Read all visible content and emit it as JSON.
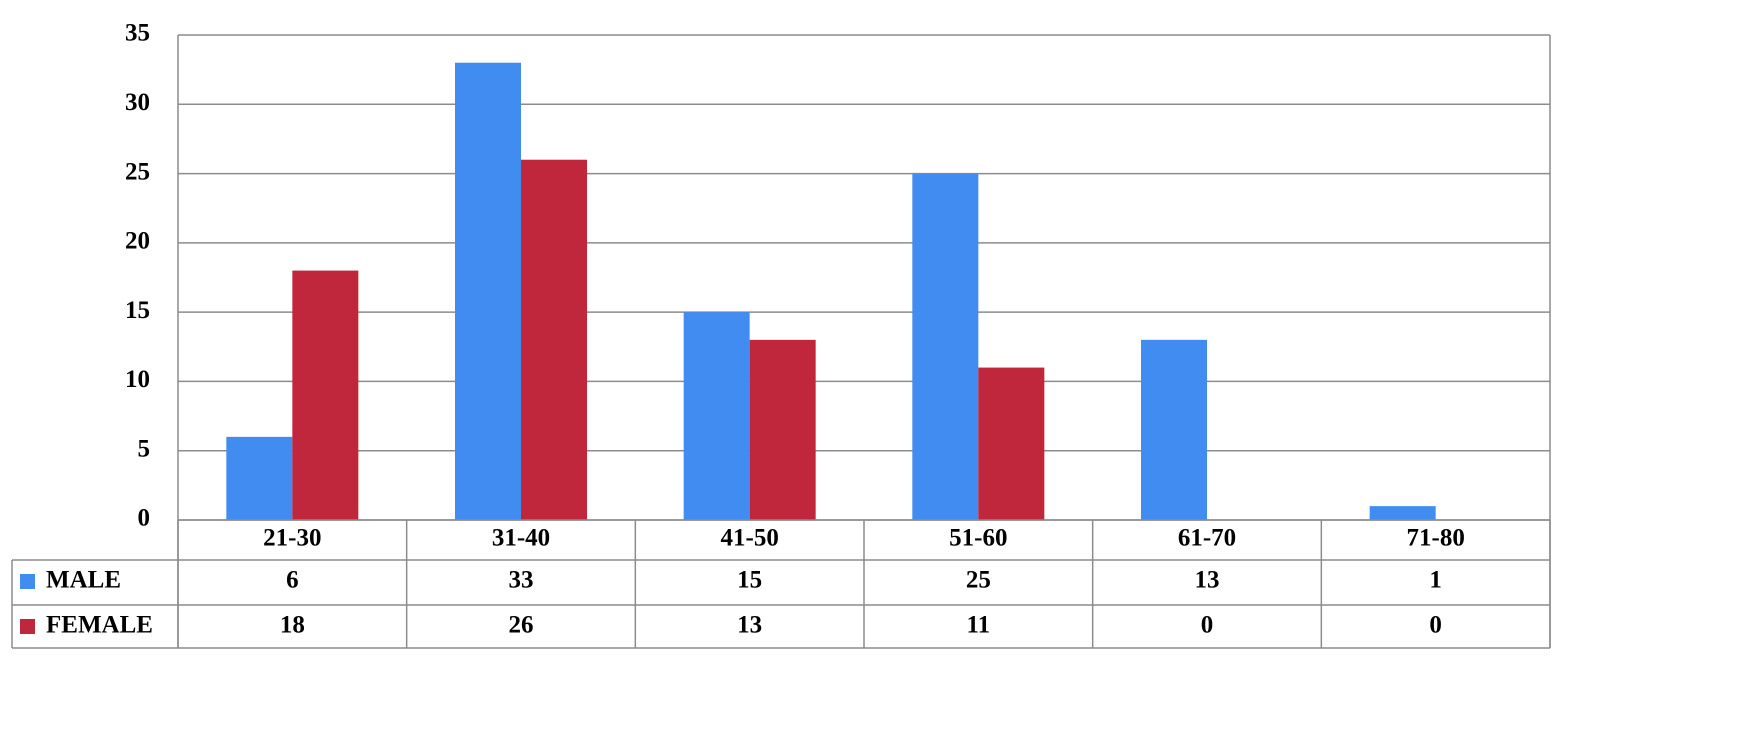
{
  "chart_data": {
    "type": "bar",
    "categories": [
      "21-30",
      "31-40",
      "41-50",
      "51-60",
      "61-70",
      "71-80"
    ],
    "series": [
      {
        "name": "MALE",
        "color": "#418cf0",
        "values": [
          6,
          33,
          15,
          25,
          13,
          1
        ]
      },
      {
        "name": "FEMALE",
        "color": "#c0273d",
        "values": [
          18,
          26,
          13,
          11,
          0,
          0
        ]
      }
    ],
    "ylim": [
      0,
      35
    ],
    "yticks": [
      0,
      5,
      10,
      15,
      20,
      25,
      30,
      35
    ],
    "grid": true
  }
}
